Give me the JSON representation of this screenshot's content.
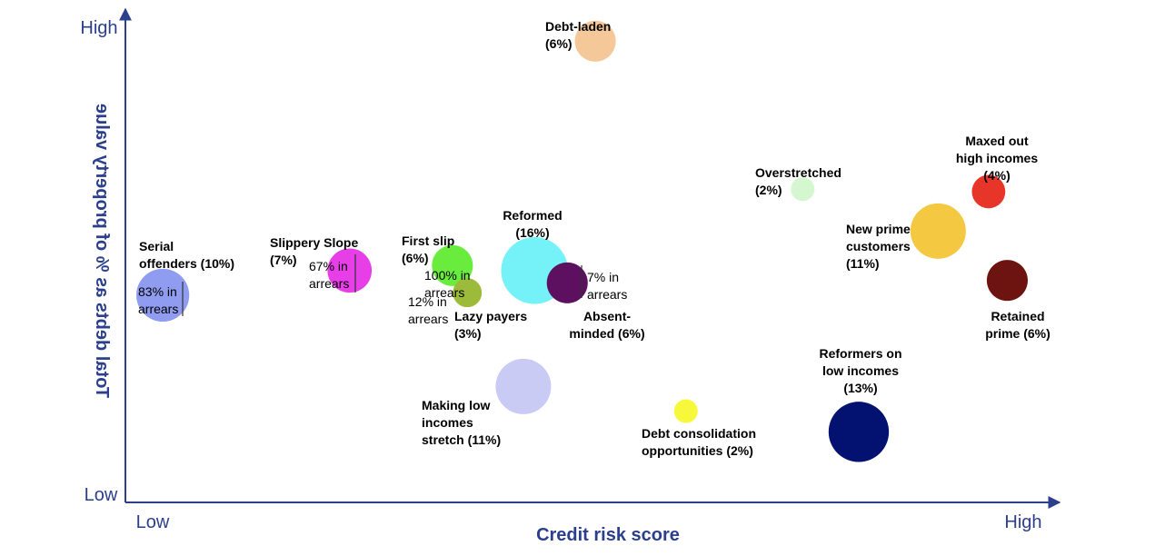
{
  "chart_data": {
    "type": "scatter",
    "title": "",
    "xlabel": "Credit risk score",
    "ylabel": "Total debts as % of property value",
    "x_ticks": [
      "Low",
      "High"
    ],
    "y_ticks": [
      "Low",
      "High"
    ],
    "xlim": [
      0,
      100
    ],
    "ylim": [
      0,
      100
    ],
    "grid": false,
    "points": [
      {
        "name": "Serial offenders",
        "share": "10%",
        "x": 4,
        "y": 42,
        "color": "#8f9cf0",
        "note": [
          "83% in",
          "arrears"
        ]
      },
      {
        "name": "Slippery Slope",
        "share": "7%",
        "x": 24,
        "y": 47,
        "color": "#e83ee8",
        "note": [
          "67% in",
          "arrears"
        ]
      },
      {
        "name": "First slip",
        "share": "6%",
        "x": 35,
        "y": 48,
        "color": "#6aec3f",
        "note": [
          "100% in",
          "arrears"
        ]
      },
      {
        "name": "Lazy payers",
        "share": "3%",
        "x": 36.6,
        "y": 42.5,
        "color": "#9dbb3a",
        "note": [
          "12% in",
          "arrears"
        ]
      },
      {
        "name": "Reformed",
        "share": "16%",
        "x": 43.8,
        "y": 47,
        "color": "#74f2f7"
      },
      {
        "name": "Absent-minded",
        "share": "6%",
        "x": 47.3,
        "y": 44.5,
        "color": "#5e1060",
        "note": [
          "7% in",
          "arrears"
        ]
      },
      {
        "name": "Debt-laden",
        "share": "6%",
        "x": 50.3,
        "y": 93.5,
        "color": "#f5c89a"
      },
      {
        "name": "Making low incomes stretch",
        "share": "11%",
        "x": 42.6,
        "y": 23.5,
        "color": "#c9cbf5"
      },
      {
        "name": "Debt consolidation opportunities",
        "share": "2%",
        "x": 60,
        "y": 18.5,
        "color": "#f8f83a"
      },
      {
        "name": "Overstretched",
        "share": "2%",
        "x": 72.5,
        "y": 63.5,
        "color": "#d4f7cf"
      },
      {
        "name": "Reformers on low incomes",
        "share": "13%",
        "x": 78.5,
        "y": 14.3,
        "color": "#031170"
      },
      {
        "name": "New prime customers",
        "share": "11%",
        "x": 87,
        "y": 55,
        "color": "#f5c842"
      },
      {
        "name": "Maxed out high incomes",
        "share": "4%",
        "x": 92.4,
        "y": 63,
        "color": "#e8352a"
      },
      {
        "name": "Retained prime",
        "share": "6%",
        "x": 94.4,
        "y": 45,
        "color": "#6e1410"
      }
    ],
    "labels": {
      "Serial offenders": [
        "Serial",
        "offenders (10%)"
      ],
      "Slippery Slope": [
        "Slippery Slope",
        "(7%)"
      ],
      "First slip": [
        "First slip",
        "(6%)"
      ],
      "Lazy payers": [
        "Lazy payers",
        "(3%)"
      ],
      "Reformed": [
        "Reformed",
        "(16%)"
      ],
      "Absent-minded": [
        "Absent-",
        "minded (6%)"
      ],
      "Debt-laden": [
        "Debt-laden",
        "(6%)"
      ],
      "Making low incomes stretch": [
        "Making low",
        "incomes",
        "stretch (11%)"
      ],
      "Debt consolidation opportunities": [
        "Debt consolidation",
        "opportunities (2%)"
      ],
      "Overstretched": [
        "Overstretched",
        "(2%)"
      ],
      "Reformers on low incomes": [
        "Reformers on",
        "low incomes",
        "(13%)"
      ],
      "New prime customers": [
        "New prime",
        "customers",
        "(11%)"
      ],
      "Maxed out high incomes": [
        "Maxed out",
        "high incomes",
        "(4%)"
      ],
      "Retained prime": [
        "Retained",
        "prime (6%)"
      ]
    }
  }
}
